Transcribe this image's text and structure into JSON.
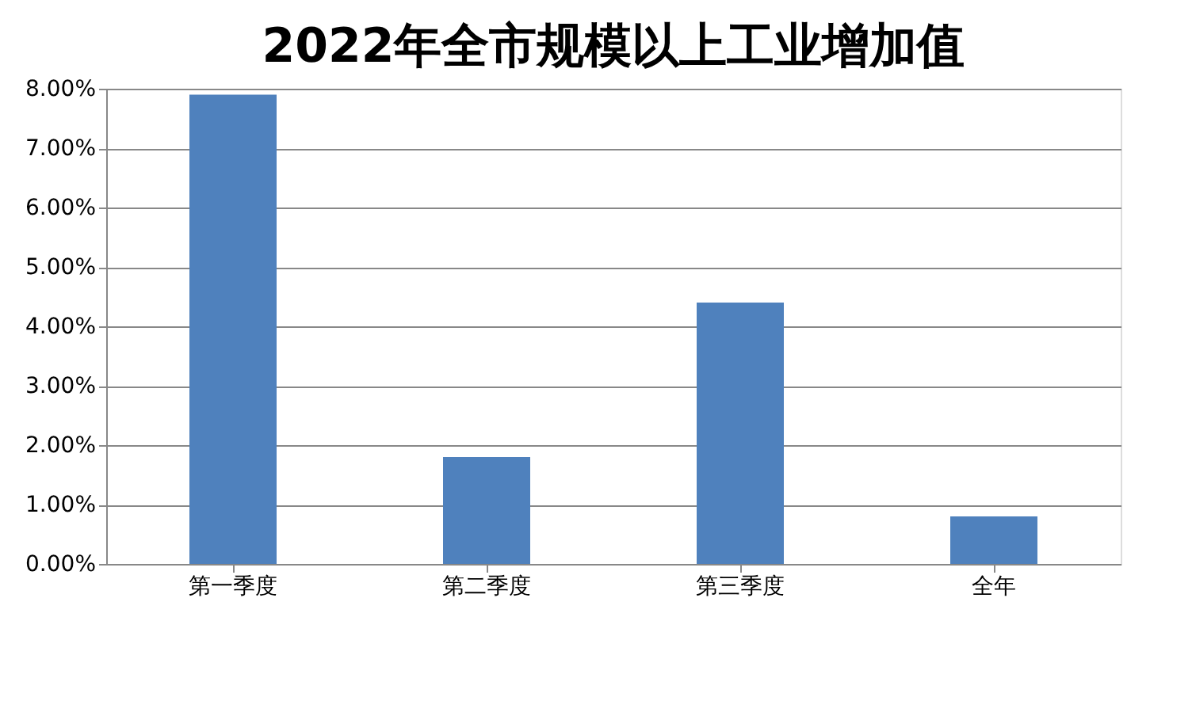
{
  "chart_data": {
    "type": "bar",
    "title": "2022年全市规模以上工业增加值",
    "categories": [
      "第一季度",
      "第二季度",
      "第三季度",
      "全年"
    ],
    "values": [
      7.9,
      1.8,
      4.4,
      0.8
    ],
    "color": "#4f81bd",
    "ylim": [
      0,
      8
    ],
    "yticks": [
      {
        "value": 0,
        "label": "0.00%"
      },
      {
        "value": 1,
        "label": "1.00%"
      },
      {
        "value": 2,
        "label": "2.00%"
      },
      {
        "value": 3,
        "label": "3.00%"
      },
      {
        "value": 4,
        "label": "4.00%"
      },
      {
        "value": 5,
        "label": "5.00%"
      },
      {
        "value": 6,
        "label": "6.00%"
      },
      {
        "value": 7,
        "label": "7.00%"
      },
      {
        "value": 8,
        "label": "8.00%"
      }
    ],
    "grid": "y"
  }
}
